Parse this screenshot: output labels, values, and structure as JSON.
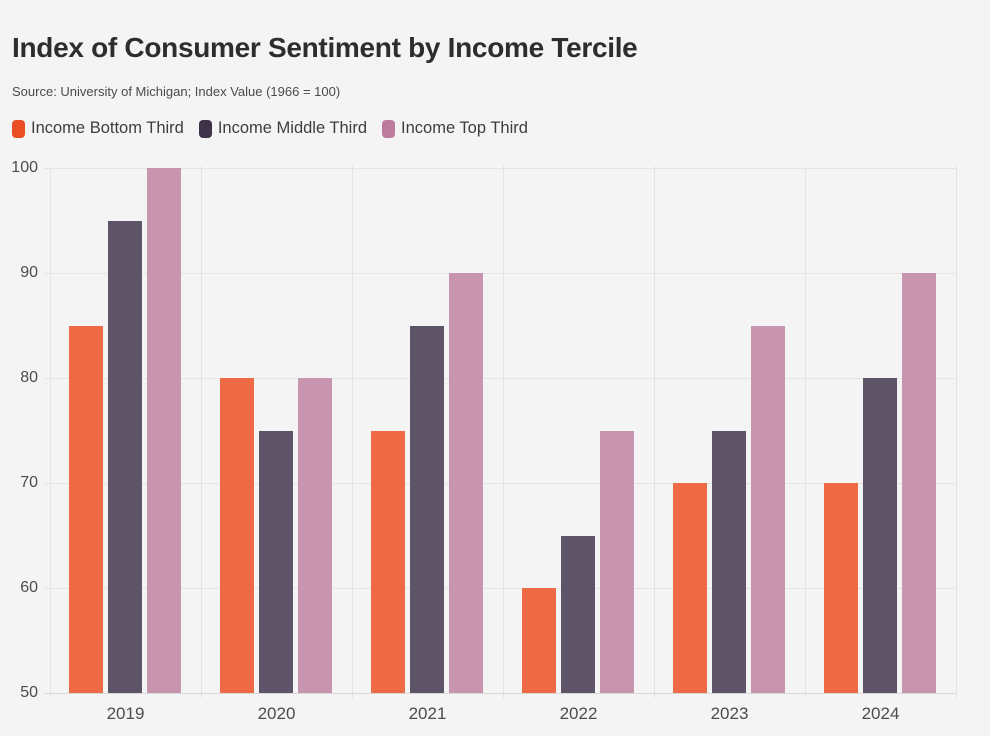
{
  "header": {
    "title": "Index of Consumer Sentiment by Income Tercile",
    "source": "Source: University of Michigan; Index Value (1966 = 100)"
  },
  "colors": {
    "background": "#f4f4f4",
    "gridline": "#e5e5e5",
    "axis_baseline": "#d8d8d8",
    "title_text": "#2d2d2d",
    "axis_text": "#4c4c4c"
  },
  "chart_data": {
    "type": "bar",
    "title": "Index of Consumer Sentiment by Income Tercile",
    "subtitle": "Source: University of Michigan; Index Value (1966 = 100)",
    "categories": [
      "2019",
      "2020",
      "2021",
      "2022",
      "2023",
      "2024"
    ],
    "series": [
      {
        "name": "Income Bottom Third",
        "color": "#e94e24",
        "bar_color": "#ed6a44",
        "values": [
          85,
          80,
          75,
          60,
          70,
          70
        ]
      },
      {
        "name": "Income Middle Third",
        "color": "#3f3349",
        "bar_color": "#5e5468",
        "values": [
          95,
          75,
          85,
          65,
          75,
          80
        ]
      },
      {
        "name": "Income Top Third",
        "color": "#bc7b9c",
        "bar_color": "#c795ad",
        "values": [
          100,
          80,
          90,
          75,
          85,
          90
        ]
      }
    ],
    "xlabel": "",
    "ylabel": "",
    "ylim": [
      50,
      100
    ],
    "y_ticks": [
      100,
      90,
      80,
      70,
      60,
      50
    ],
    "grid": "on",
    "legend_position": "top"
  }
}
